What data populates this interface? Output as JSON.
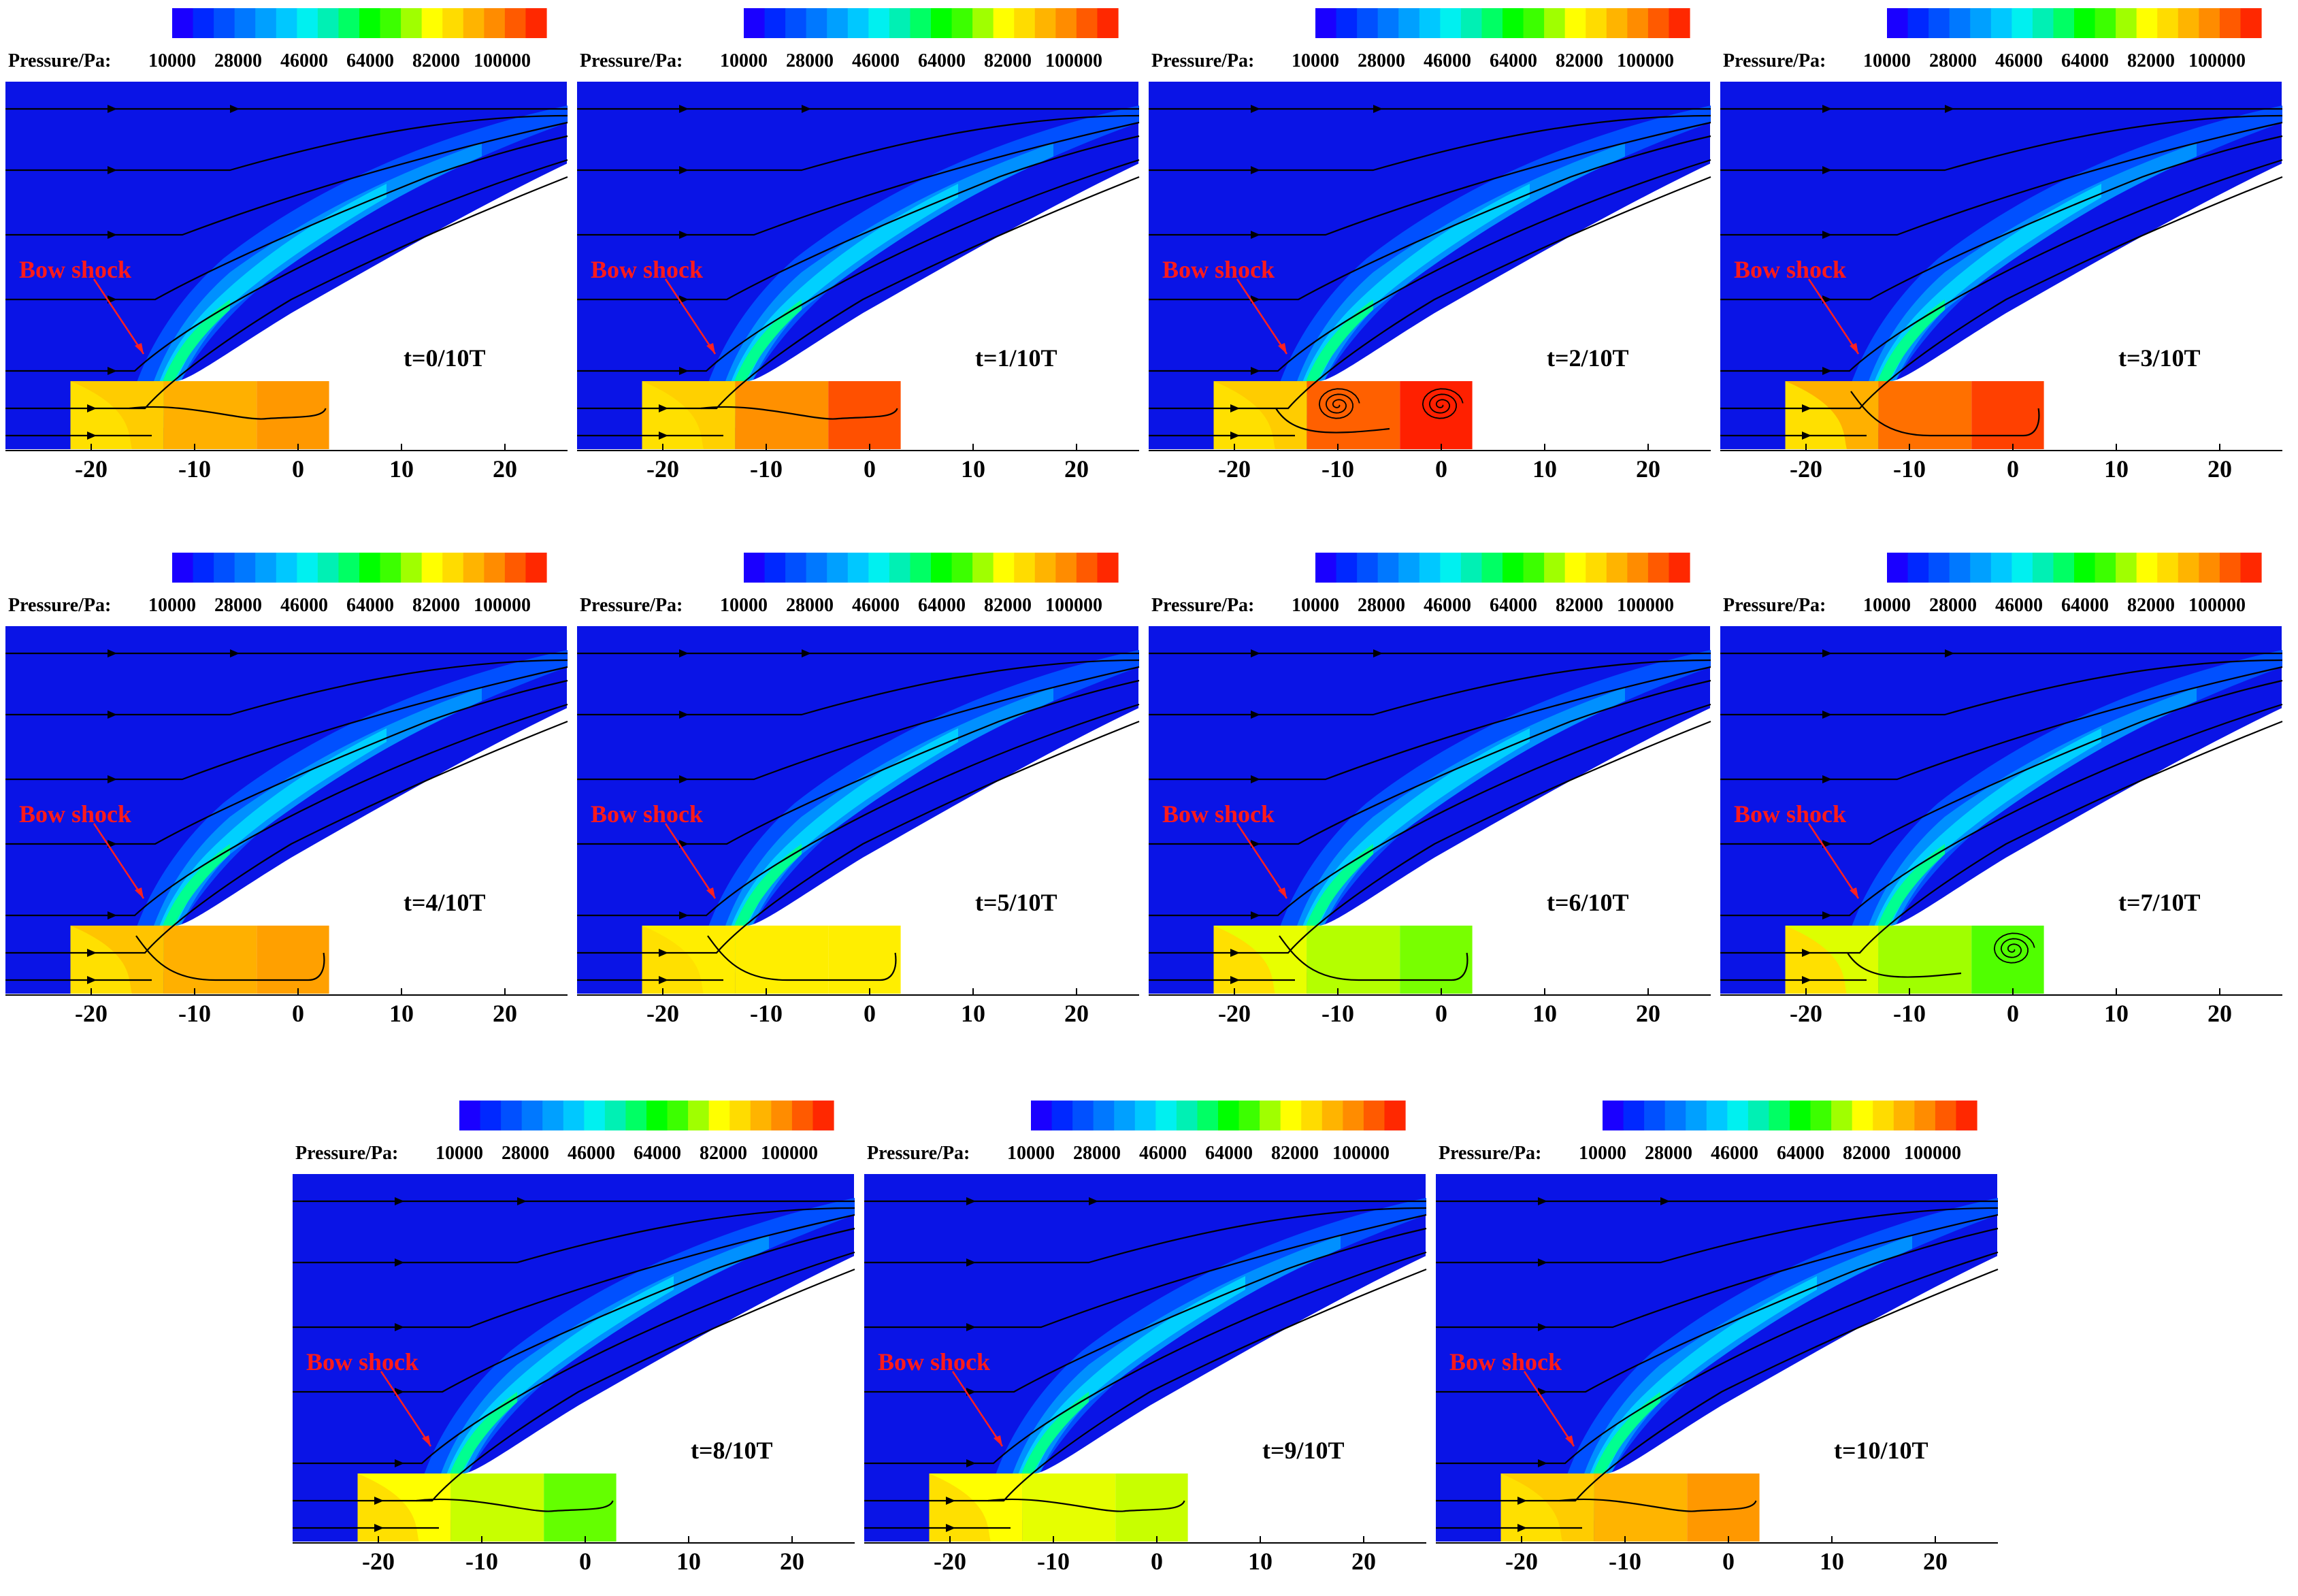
{
  "colorbar": {
    "title": "Pressure/Pa:",
    "ticks": [
      "10000",
      "28000",
      "46000",
      "64000",
      "82000",
      "100000"
    ],
    "colors": [
      "#1a00ff",
      "#0028ff",
      "#0050ff",
      "#0078ff",
      "#00a0ff",
      "#00c8ff",
      "#00f0f0",
      "#00f0b4",
      "#00ff64",
      "#00ff00",
      "#3cff00",
      "#a0ff00",
      "#ffff00",
      "#ffdc00",
      "#ffb400",
      "#ff8c00",
      "#ff5a00",
      "#ff2800"
    ]
  },
  "axis": {
    "ticks": [
      -20,
      -10,
      0,
      10,
      20
    ]
  },
  "annotation": {
    "bow_shock": "Bow shock"
  },
  "panels": [
    {
      "time": "t=0/10T",
      "cavity": [
        "#ffcc00",
        "#ffb000",
        "#ff9800"
      ],
      "streamline": "flat",
      "vortices": []
    },
    {
      "time": "t=1/10T",
      "cavity": [
        "#ffd000",
        "#ff9000",
        "#ff5000"
      ],
      "streamline": "flat",
      "vortices": []
    },
    {
      "time": "t=2/10T",
      "cavity": [
        "#ffcc00",
        "#ff6000",
        "#ff2000"
      ],
      "streamline": "vortex",
      "vortices": [
        -10,
        0
      ]
    },
    {
      "time": "t=3/10T",
      "cavity": [
        "#ffb000",
        "#ff7000",
        "#ff4000"
      ],
      "streamline": "return",
      "vortices": []
    },
    {
      "time": "t=4/10T",
      "cavity": [
        "#ffc400",
        "#ffb000",
        "#ffa000"
      ],
      "streamline": "return",
      "vortices": []
    },
    {
      "time": "t=5/10T",
      "cavity": [
        "#ffee00",
        "#ffee00",
        "#ffee00"
      ],
      "streamline": "return",
      "vortices": []
    },
    {
      "time": "t=6/10T",
      "cavity": [
        "#e8ff00",
        "#b4ff00",
        "#78ff00"
      ],
      "streamline": "return",
      "vortices": []
    },
    {
      "time": "t=7/10T",
      "cavity": [
        "#ddff00",
        "#a0ff00",
        "#50ff00"
      ],
      "streamline": "vortex1",
      "vortices": [
        0
      ]
    },
    {
      "time": "t=8/10T",
      "cavity": [
        "#ffff00",
        "#c8ff00",
        "#64ff00"
      ],
      "streamline": "flat",
      "vortices": []
    },
    {
      "time": "t=9/10T",
      "cavity": [
        "#ffff00",
        "#e6ff00",
        "#c8ff00"
      ],
      "streamline": "flat",
      "vortices": []
    },
    {
      "time": "t=10/10T",
      "cavity": [
        "#ffcc00",
        "#ffb400",
        "#ff9800"
      ],
      "streamline": "flat",
      "vortices": []
    }
  ]
}
